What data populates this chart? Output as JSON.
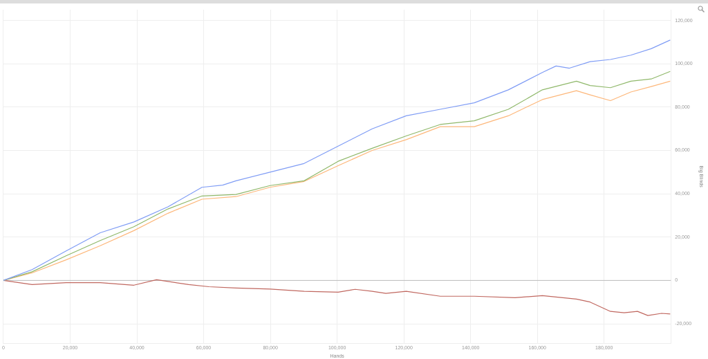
{
  "chart_data": {
    "type": "line",
    "xlabel": "Hands",
    "ylabel": "Big Blinds",
    "xlim": [
      0,
      200000
    ],
    "xticks": [
      {
        "value": 0,
        "label": "0"
      },
      {
        "value": 20000,
        "label": "20,000"
      },
      {
        "value": 40000,
        "label": "40,000"
      },
      {
        "value": 60000,
        "label": "60,000"
      },
      {
        "value": 80000,
        "label": "80,000"
      },
      {
        "value": 100000,
        "label": "100,000"
      },
      {
        "value": 120000,
        "label": "120,000"
      },
      {
        "value": 140000,
        "label": "140,000"
      },
      {
        "value": 160000,
        "label": "160,000"
      },
      {
        "value": 180000,
        "label": "180,000"
      }
    ],
    "ylim": [
      -29000,
      125000
    ],
    "yticks": [
      {
        "value": -20000,
        "label": "-20,000"
      },
      {
        "value": 0,
        "label": "0"
      },
      {
        "value": 20000,
        "label": "20,000"
      },
      {
        "value": 40000,
        "label": "40,000"
      },
      {
        "value": 60000,
        "label": "60,000"
      },
      {
        "value": 80000,
        "label": "80,000"
      },
      {
        "value": 100000,
        "label": "100,000"
      },
      {
        "value": 120000,
        "label": "120,000"
      }
    ],
    "grid": true,
    "legend": false,
    "marker": "none",
    "line_style": "solid",
    "ref_lines": [
      {
        "axis": "y",
        "value": 0,
        "color": "#bbbbbb"
      }
    ],
    "series": [
      {
        "color": "#7f9cf5",
        "x": [
          0,
          8600,
          18800,
          29000,
          39100,
          49300,
          59500,
          65700,
          69700,
          79900,
          90100,
          100300,
          110500,
          120700,
          130900,
          141100,
          151300,
          161500,
          165600,
          169600,
          175800,
          181900,
          188000,
          194100,
          199800
        ],
        "values": [
          0,
          5000,
          13600,
          22000,
          27000,
          34000,
          43000,
          44000,
          46000,
          50000,
          54000,
          62000,
          70000,
          76000,
          79000,
          82000,
          88000,
          96000,
          99000,
          98000,
          101000,
          102000,
          104000,
          107000,
          111000
        ]
      },
      {
        "color": "#8fb86a",
        "x": [
          0,
          8600,
          18800,
          29000,
          39100,
          49300,
          59500,
          69700,
          79900,
          90100,
          100300,
          110500,
          120700,
          130900,
          141100,
          151300,
          161500,
          171700,
          175800,
          181900,
          188000,
          194100,
          199800
        ],
        "values": [
          0,
          4000,
          11400,
          18400,
          24800,
          33000,
          39000,
          39700,
          43800,
          46000,
          55000,
          61000,
          66700,
          72000,
          73700,
          79000,
          88000,
          92000,
          90000,
          89000,
          92000,
          93000,
          96500
        ]
      },
      {
        "color": "#fdb77a",
        "x": [
          0,
          8600,
          18800,
          29000,
          39100,
          49300,
          59500,
          69700,
          79900,
          90100,
          100300,
          110500,
          120700,
          130900,
          141100,
          151300,
          161500,
          171700,
          175800,
          181900,
          188000,
          194100,
          199800
        ],
        "values": [
          0,
          3500,
          9500,
          16000,
          23000,
          31000,
          37500,
          38700,
          43000,
          45700,
          53000,
          60000,
          65000,
          71000,
          71000,
          76000,
          83500,
          87600,
          85700,
          83000,
          87000,
          89500,
          92000
        ]
      },
      {
        "color": "#c0675f",
        "x": [
          0,
          8600,
          18800,
          29000,
          39100,
          45900,
          55500,
          61600,
          69700,
          79900,
          90100,
          100300,
          105400,
          110500,
          114600,
          120700,
          130900,
          141100,
          153300,
          161500,
          171700,
          175800,
          181900,
          186000,
          190000,
          193100,
          197200,
          199800
        ],
        "values": [
          0,
          -1900,
          -1000,
          -1000,
          -2200,
          300,
          -1900,
          -2900,
          -3500,
          -4000,
          -5000,
          -5400,
          -4100,
          -5000,
          -6000,
          -5000,
          -7300,
          -7300,
          -8000,
          -7000,
          -8600,
          -10000,
          -14300,
          -14900,
          -14300,
          -16200,
          -15200,
          -15500
        ]
      }
    ]
  }
}
